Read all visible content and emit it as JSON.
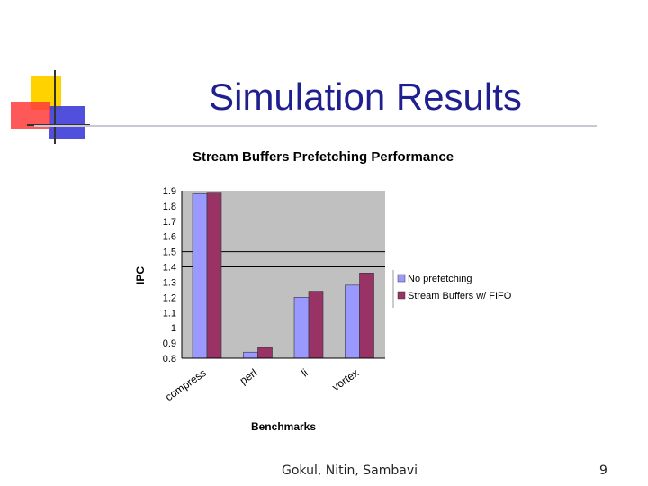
{
  "slide": {
    "title": "Simulation Results",
    "footer": "Gokul, Nitin, Sambavi",
    "page_number": "9"
  },
  "colors": {
    "title": "#1f1f8f",
    "plot_bg": "#c0c0c0",
    "series_1": "#9999ff",
    "series_2": "#993366",
    "logo_yellow": "#ffd200",
    "logo_red": "#ff3b3b",
    "logo_blue": "#3d3dd8"
  },
  "chart_data": {
    "type": "bar",
    "title": "Stream Buffers Prefetching Performance",
    "xlabel": "Benchmarks",
    "ylabel": "IPC",
    "categories": [
      "compress",
      "perl",
      "li",
      "vortex"
    ],
    "series": [
      {
        "name": "No prefetching",
        "values": [
          1.88,
          0.84,
          1.2,
          1.28
        ]
      },
      {
        "name": "Stream Buffers w/ FIFO",
        "values": [
          1.89,
          0.87,
          1.24,
          1.36
        ]
      }
    ],
    "ylim": [
      0.8,
      1.9
    ],
    "yticks": [
      "1.9",
      "1.8",
      "1.7",
      "1.6",
      "1.5",
      "1.4",
      "1.3",
      "1.2",
      "1.1",
      "1",
      "0.9",
      "0.8"
    ],
    "reference_lines": [
      1.5,
      1.4
    ],
    "legend_position": "right",
    "grid": false
  }
}
